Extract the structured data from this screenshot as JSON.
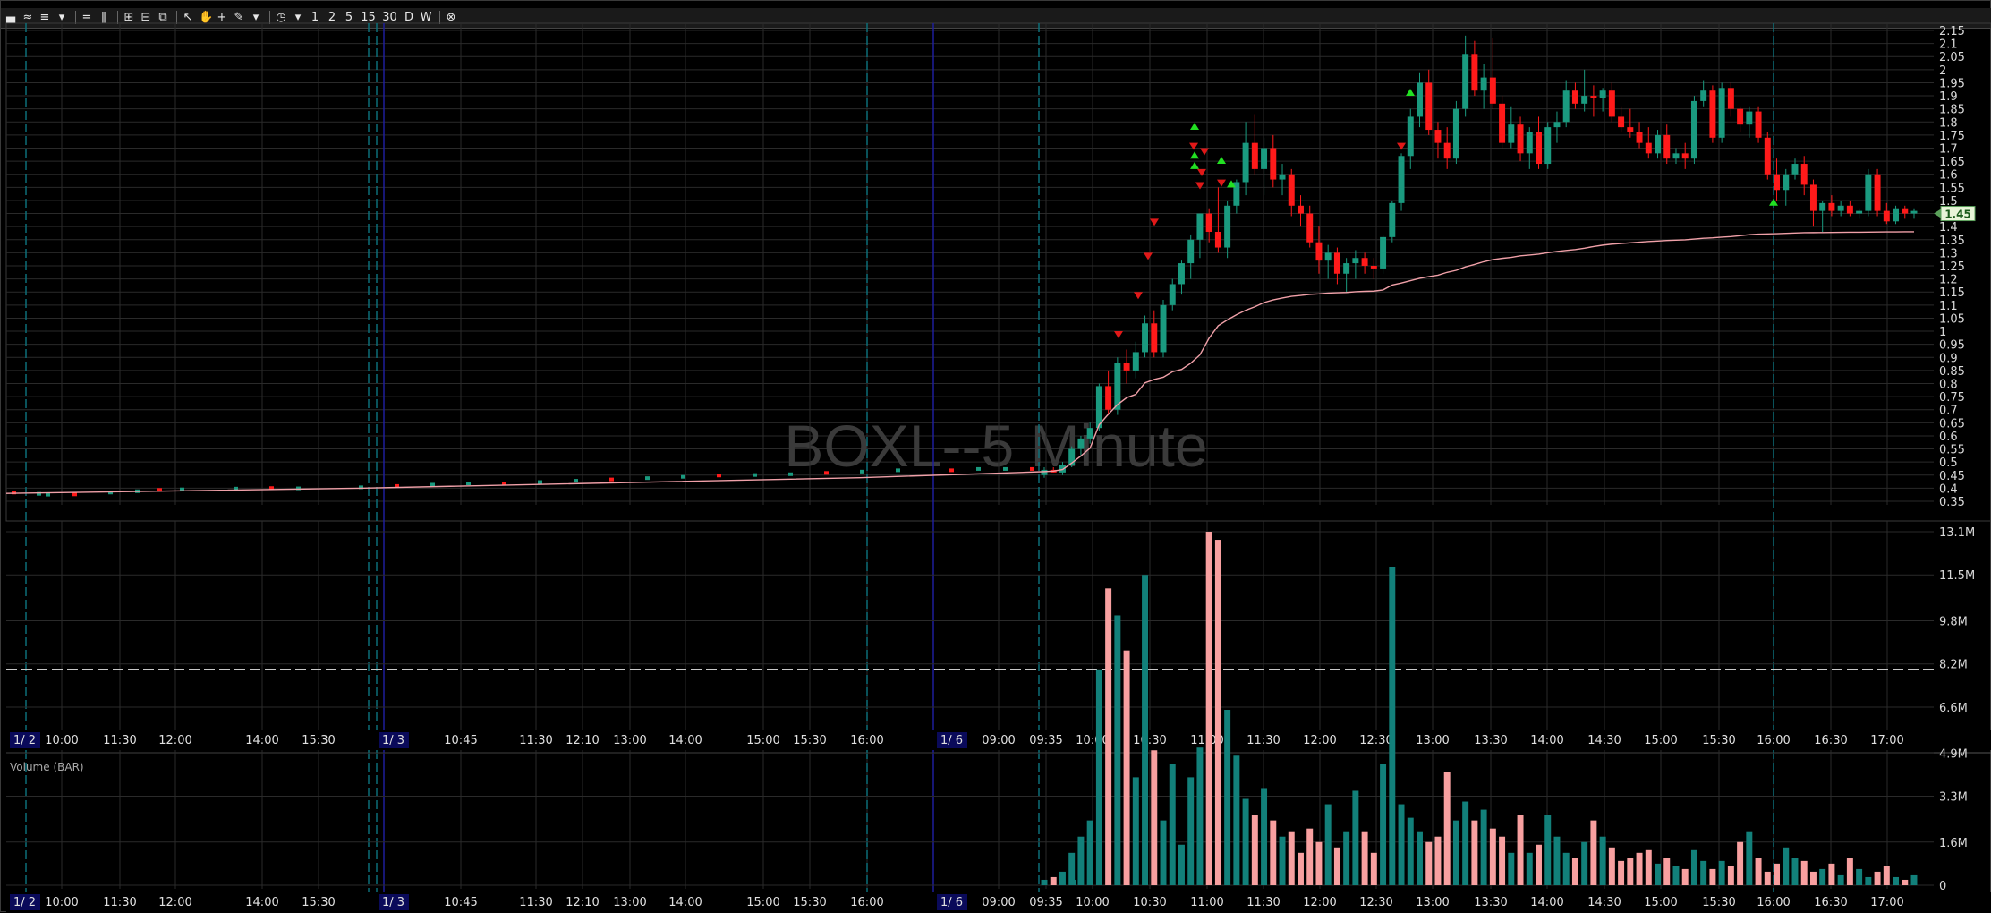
{
  "symbol_title": "BOXL--5 Minute",
  "price_badge": "1.45",
  "volume_panel_label": "Volume (BAR)",
  "toolbar": [
    {
      "name": "chart-type-icon",
      "glyph": "▄"
    },
    {
      "name": "draw-icon",
      "glyph": "≈"
    },
    {
      "name": "tools-icon",
      "glyph": "≡"
    },
    {
      "name": "dropdown-icon",
      "glyph": "▾"
    },
    {
      "name": "sep"
    },
    {
      "name": "horizontal-layout-icon",
      "glyph": "="
    },
    {
      "name": "vertical-layout-icon",
      "glyph": "‖"
    },
    {
      "name": "sep"
    },
    {
      "name": "zoom-grid-icon",
      "glyph": "⊞"
    },
    {
      "name": "zoom-out-icon",
      "glyph": "⊟"
    },
    {
      "name": "zoom-reset-icon",
      "glyph": "⧉"
    },
    {
      "name": "sep"
    },
    {
      "name": "pointer-icon",
      "glyph": "↖"
    },
    {
      "name": "hand-icon",
      "glyph": "✋"
    },
    {
      "name": "crosshair-icon",
      "glyph": "+"
    },
    {
      "name": "pencil-icon",
      "glyph": "✎"
    },
    {
      "name": "dropdown-icon",
      "glyph": "▾"
    },
    {
      "name": "sep"
    },
    {
      "name": "clock-icon",
      "glyph": "◷"
    },
    {
      "name": "dropdown-icon",
      "glyph": "▾"
    },
    {
      "name": "timeframe-1-button",
      "glyph": "1"
    },
    {
      "name": "timeframe-2-button",
      "glyph": "2"
    },
    {
      "name": "timeframe-5-button",
      "glyph": "5"
    },
    {
      "name": "timeframe-15-button",
      "glyph": "15"
    },
    {
      "name": "timeframe-30-button",
      "glyph": "30"
    },
    {
      "name": "timeframe-day-button",
      "glyph": "D"
    },
    {
      "name": "timeframe-week-button",
      "glyph": "W"
    },
    {
      "name": "sep"
    },
    {
      "name": "close-icon",
      "glyph": "⊗"
    }
  ],
  "price_axis_labels": [
    "2.15",
    "2.1",
    "2.05",
    "2",
    "1.95",
    "1.9",
    "1.85",
    "1.8",
    "1.75",
    "1.7",
    "1.65",
    "1.6",
    "1.55",
    "1.5",
    "1.45",
    "1.4",
    "1.35",
    "1.3",
    "1.25",
    "1.2",
    "1.15",
    "1.1",
    "1.05",
    "1",
    "0.95",
    "0.9",
    "0.85",
    "0.8",
    "0.75",
    "0.7",
    "0.65",
    "0.6",
    "0.55",
    "0.5",
    "0.45",
    "0.4",
    "0.35"
  ],
  "volume_axis_labels": [
    "13.1M",
    "11.5M",
    "9.8M",
    "8.2M",
    "6.6M",
    "4.9M",
    "3.3M",
    "1.6M",
    "0"
  ],
  "time_axis": {
    "dates": [
      {
        "label": "1/ 2"
      },
      {
        "label": "1/ 3"
      },
      {
        "label": "1/ 6"
      }
    ],
    "times": [
      "10:00",
      "11:30",
      "12:00",
      "14:00",
      "15:30",
      "10:45",
      "11:30",
      "12:10",
      "13:00",
      "14:00",
      "15:00",
      "15:30",
      "16:00",
      "09:00",
      "09:35",
      "10:00",
      "10:30",
      "11:00",
      "11:30",
      "12:00",
      "12:30",
      "13:00",
      "13:30",
      "14:00",
      "14:30",
      "15:00",
      "15:30",
      "16:00",
      "16:30",
      "17:00"
    ]
  },
  "colors": {
    "up": "#1a9a7f",
    "down": "#ff1a1a",
    "vwap": "#f0a0a8",
    "vol_up": "#12807a",
    "vol_down": "#f8a0a0",
    "grid": "#2a2a2a",
    "session": "#0c6e78",
    "day": "#1e1e9a"
  },
  "chart_data": {
    "type": "candlestick",
    "title": "BOXL--5 Minute",
    "ylim": [
      0.35,
      2.15
    ],
    "candles": [
      [
        0.45,
        0.48,
        0.44,
        0.47
      ],
      [
        0.47,
        0.48,
        0.46,
        0.46
      ],
      [
        0.46,
        0.5,
        0.45,
        0.49
      ],
      [
        0.49,
        0.56,
        0.48,
        0.55
      ],
      [
        0.55,
        0.6,
        0.52,
        0.59
      ],
      [
        0.59,
        0.65,
        0.57,
        0.63
      ],
      [
        0.63,
        0.8,
        0.62,
        0.79
      ],
      [
        0.79,
        0.85,
        0.68,
        0.7
      ],
      [
        0.7,
        0.9,
        0.68,
        0.88
      ],
      [
        0.88,
        0.93,
        0.8,
        0.85
      ],
      [
        0.85,
        0.96,
        0.82,
        0.92
      ],
      [
        0.92,
        1.06,
        0.9,
        1.03
      ],
      [
        1.03,
        1.08,
        0.9,
        0.92
      ],
      [
        0.92,
        1.12,
        0.9,
        1.1
      ],
      [
        1.1,
        1.2,
        1.08,
        1.18
      ],
      [
        1.18,
        1.27,
        1.14,
        1.26
      ],
      [
        1.26,
        1.37,
        1.2,
        1.35
      ],
      [
        1.35,
        1.45,
        1.28,
        1.45
      ],
      [
        1.45,
        1.47,
        1.34,
        1.38
      ],
      [
        1.38,
        1.55,
        1.3,
        1.32
      ],
      [
        1.32,
        1.5,
        1.28,
        1.48
      ],
      [
        1.48,
        1.58,
        1.45,
        1.57
      ],
      [
        1.57,
        1.8,
        1.52,
        1.72
      ],
      [
        1.72,
        1.83,
        1.6,
        1.62
      ],
      [
        1.62,
        1.74,
        1.52,
        1.7
      ],
      [
        1.7,
        1.75,
        1.55,
        1.58
      ],
      [
        1.58,
        1.64,
        1.52,
        1.6
      ],
      [
        1.6,
        1.62,
        1.44,
        1.48
      ],
      [
        1.48,
        1.52,
        1.4,
        1.45
      ],
      [
        1.45,
        1.48,
        1.32,
        1.34
      ],
      [
        1.34,
        1.4,
        1.22,
        1.27
      ],
      [
        1.27,
        1.33,
        1.2,
        1.3
      ],
      [
        1.3,
        1.32,
        1.18,
        1.22
      ],
      [
        1.22,
        1.28,
        1.15,
        1.26
      ],
      [
        1.26,
        1.31,
        1.2,
        1.28
      ],
      [
        1.28,
        1.3,
        1.22,
        1.25
      ],
      [
        1.25,
        1.28,
        1.2,
        1.24
      ],
      [
        1.24,
        1.37,
        1.22,
        1.36
      ],
      [
        1.36,
        1.5,
        1.34,
        1.49
      ],
      [
        1.49,
        1.68,
        1.46,
        1.67
      ],
      [
        1.67,
        1.85,
        1.62,
        1.82
      ],
      [
        1.82,
        1.99,
        1.78,
        1.95
      ],
      [
        1.95,
        2.0,
        1.75,
        1.77
      ],
      [
        1.77,
        1.8,
        1.66,
        1.72
      ],
      [
        1.72,
        1.78,
        1.62,
        1.66
      ],
      [
        1.66,
        1.88,
        1.64,
        1.85
      ],
      [
        1.85,
        2.13,
        1.82,
        2.06
      ],
      [
        2.06,
        2.11,
        1.9,
        1.92
      ],
      [
        1.92,
        2.02,
        1.85,
        1.97
      ],
      [
        1.97,
        2.12,
        1.85,
        1.87
      ],
      [
        1.87,
        1.9,
        1.7,
        1.72
      ],
      [
        1.72,
        1.86,
        1.7,
        1.79
      ],
      [
        1.79,
        1.82,
        1.65,
        1.68
      ],
      [
        1.68,
        1.78,
        1.62,
        1.76
      ],
      [
        1.76,
        1.82,
        1.62,
        1.64
      ],
      [
        1.64,
        1.8,
        1.62,
        1.78
      ],
      [
        1.78,
        1.84,
        1.72,
        1.8
      ],
      [
        1.8,
        1.96,
        1.78,
        1.92
      ],
      [
        1.92,
        1.95,
        1.85,
        1.87
      ],
      [
        1.87,
        2.0,
        1.84,
        1.9
      ],
      [
        1.9,
        1.94,
        1.82,
        1.89
      ],
      [
        1.89,
        1.93,
        1.84,
        1.92
      ],
      [
        1.92,
        1.95,
        1.8,
        1.82
      ],
      [
        1.82,
        1.86,
        1.76,
        1.78
      ],
      [
        1.78,
        1.85,
        1.74,
        1.76
      ],
      [
        1.76,
        1.8,
        1.7,
        1.72
      ],
      [
        1.72,
        1.78,
        1.66,
        1.68
      ],
      [
        1.68,
        1.77,
        1.66,
        1.75
      ],
      [
        1.75,
        1.79,
        1.64,
        1.66
      ],
      [
        1.66,
        1.7,
        1.64,
        1.68
      ],
      [
        1.68,
        1.72,
        1.62,
        1.66
      ],
      [
        1.66,
        1.9,
        1.64,
        1.88
      ],
      [
        1.88,
        1.96,
        1.86,
        1.92
      ],
      [
        1.92,
        1.94,
        1.72,
        1.74
      ],
      [
        1.74,
        1.95,
        1.72,
        1.93
      ],
      [
        1.93,
        1.95,
        1.82,
        1.85
      ],
      [
        1.85,
        1.86,
        1.76,
        1.79
      ],
      [
        1.79,
        1.86,
        1.74,
        1.84
      ],
      [
        1.84,
        1.86,
        1.72,
        1.74
      ],
      [
        1.74,
        1.76,
        1.58,
        1.6
      ],
      [
        1.6,
        1.66,
        1.5,
        1.54
      ],
      [
        1.54,
        1.62,
        1.48,
        1.6
      ],
      [
        1.6,
        1.66,
        1.58,
        1.64
      ],
      [
        1.64,
        1.67,
        1.52,
        1.56
      ],
      [
        1.56,
        1.58,
        1.4,
        1.46
      ],
      [
        1.46,
        1.5,
        1.38,
        1.49
      ],
      [
        1.49,
        1.52,
        1.44,
        1.46
      ],
      [
        1.46,
        1.5,
        1.44,
        1.48
      ],
      [
        1.48,
        1.5,
        1.44,
        1.45
      ],
      [
        1.45,
        1.47,
        1.43,
        1.46
      ],
      [
        1.46,
        1.62,
        1.44,
        1.6
      ],
      [
        1.6,
        1.62,
        1.44,
        1.46
      ],
      [
        1.46,
        1.49,
        1.41,
        1.42
      ],
      [
        1.42,
        1.48,
        1.41,
        1.47
      ],
      [
        1.47,
        1.48,
        1.43,
        1.45
      ],
      [
        1.45,
        1.47,
        1.43,
        1.46
      ]
    ],
    "volume": [
      0.2,
      0.3,
      0.5,
      1.2,
      1.8,
      2.4,
      8.0,
      11.0,
      10.0,
      8.7,
      4.0,
      11.5,
      5.0,
      2.4,
      4.5,
      1.5,
      4.0,
      5.1,
      13.1,
      12.8,
      6.5,
      4.8,
      3.2,
      2.6,
      3.6,
      2.4,
      1.8,
      2.0,
      1.2,
      2.1,
      1.6,
      3.0,
      1.4,
      2.0,
      3.5,
      2.0,
      1.2,
      4.5,
      11.8,
      3.0,
      2.5,
      2.0,
      1.6,
      1.8,
      4.2,
      2.4,
      3.1,
      2.4,
      2.8,
      2.1,
      1.8,
      1.2,
      2.6,
      1.2,
      1.5,
      2.6,
      1.8,
      1.2,
      1.0,
      1.6,
      2.4,
      1.8,
      1.4,
      0.9,
      1.0,
      1.2,
      1.3,
      0.8,
      1.0,
      0.7,
      0.6,
      1.3,
      0.9,
      0.6,
      0.9,
      0.7,
      1.6,
      2.0,
      1.0,
      0.5,
      0.8,
      1.4,
      1.0,
      0.9,
      0.5,
      0.6,
      0.8,
      0.4,
      1.0,
      0.6,
      0.3,
      0.5,
      0.7,
      0.3,
      0.2,
      0.4
    ]
  }
}
